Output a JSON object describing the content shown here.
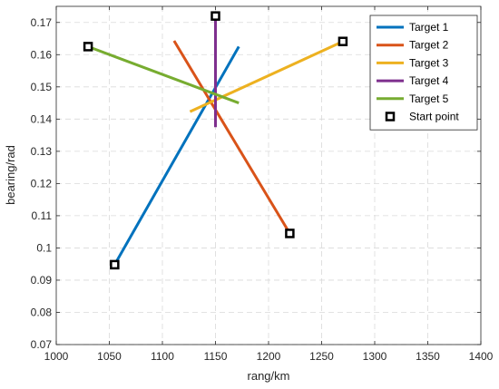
{
  "chart_data": {
    "type": "line",
    "title": "",
    "xlabel": "rang/km",
    "ylabel": "bearing/rad",
    "xlim": [
      1000,
      1400
    ],
    "ylim": [
      0.07,
      0.175
    ],
    "xticks": [
      1000,
      1050,
      1100,
      1150,
      1200,
      1250,
      1300,
      1350,
      1400
    ],
    "yticks": [
      0.07,
      0.08,
      0.09,
      0.1,
      0.11,
      0.12,
      0.13,
      0.14,
      0.15,
      0.16,
      0.17
    ],
    "xtick_labels": [
      "1000",
      "1050",
      "1100",
      "1150",
      "1200",
      "1250",
      "1300",
      "1350",
      "1400"
    ],
    "ytick_labels": [
      "0.07",
      "0.08",
      "0.09",
      "0.1",
      "0.11",
      "0.12",
      "0.13",
      "0.14",
      "0.15",
      "0.16",
      "0.17"
    ],
    "grid": true,
    "legend_position": "top-right",
    "series": [
      {
        "name": "Target 1",
        "color": "#0072BD",
        "x": [
          1055,
          1172
        ],
        "y": [
          0.0948,
          0.1625
        ]
      },
      {
        "name": "Target 2",
        "color": "#D95319",
        "x": [
          1220,
          1111
        ],
        "y": [
          0.1045,
          0.1643
        ]
      },
      {
        "name": "Target 3",
        "color": "#EDB120",
        "x": [
          1270,
          1126
        ],
        "y": [
          0.1641,
          0.1423
        ]
      },
      {
        "name": "Target 4",
        "color": "#7E2F8E",
        "x": [
          1150,
          1150
        ],
        "y": [
          0.172,
          0.1375
        ]
      },
      {
        "name": "Target 5",
        "color": "#77AC30",
        "x": [
          1030,
          1172
        ],
        "y": [
          0.1625,
          0.145
        ]
      }
    ],
    "start_point_label": "Start point"
  }
}
